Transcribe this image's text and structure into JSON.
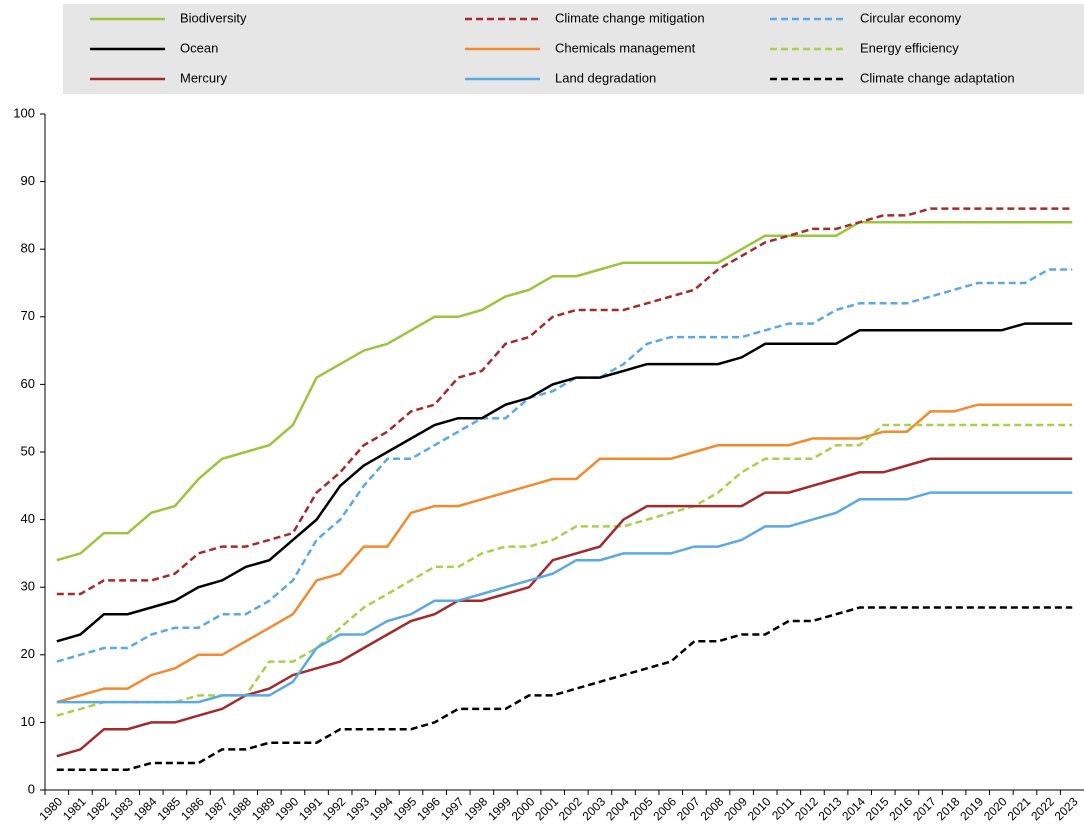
{
  "chart_data": {
    "type": "line",
    "categories": [
      "1980",
      "1981",
      "1982",
      "1983",
      "1984",
      "1985",
      "1986",
      "1987",
      "1988",
      "1989",
      "1990",
      "1991",
      "1992",
      "1993",
      "1994",
      "1995",
      "1996",
      "1997",
      "1998",
      "1999",
      "2000",
      "2001",
      "2002",
      "2003",
      "2004",
      "2005",
      "2006",
      "2007",
      "2008",
      "2009",
      "2010",
      "2011",
      "2012",
      "2013",
      "2014",
      "2015",
      "2016",
      "2017",
      "2018",
      "2019",
      "2020",
      "2021",
      "2022",
      "2023"
    ],
    "ylim": [
      0,
      100
    ],
    "yticks": [
      0,
      10,
      20,
      30,
      40,
      50,
      60,
      70,
      80,
      90,
      100
    ],
    "grid": false,
    "series": [
      {
        "name": "Biodiversity",
        "color": "#9bc53d",
        "dash": false,
        "values": [
          34,
          35,
          38,
          38,
          41,
          42,
          46,
          49,
          50,
          51,
          54,
          61,
          63,
          65,
          66,
          68,
          70,
          70,
          71,
          73,
          74,
          76,
          76,
          77,
          78,
          78,
          78,
          78,
          78,
          80,
          82,
          82,
          82,
          82,
          84,
          84,
          84,
          84,
          84,
          84,
          84,
          84,
          84,
          84
        ]
      },
      {
        "name": "Climate change mitigation",
        "color": "#a52a2a",
        "dash": true,
        "values": [
          29,
          29,
          31,
          31,
          31,
          32,
          35,
          36,
          36,
          37,
          38,
          44,
          47,
          51,
          53,
          56,
          57,
          61,
          62,
          66,
          67,
          70,
          71,
          71,
          71,
          72,
          73,
          74,
          77,
          79,
          81,
          82,
          83,
          83,
          84,
          85,
          85,
          86,
          86,
          86,
          86,
          86,
          86,
          86
        ]
      },
      {
        "name": "Circular economy",
        "color": "#5aa9e6",
        "dash": true,
        "values": [
          19,
          20,
          21,
          21,
          23,
          24,
          24,
          26,
          26,
          28,
          31,
          37,
          40,
          45,
          49,
          49,
          51,
          53,
          55,
          55,
          58,
          59,
          61,
          61,
          63,
          66,
          67,
          67,
          67,
          67,
          68,
          69,
          69,
          71,
          72,
          72,
          72,
          73,
          74,
          75,
          75,
          75,
          77,
          77
        ]
      },
      {
        "name": "Ocean",
        "color": "#000000",
        "dash": false,
        "values": [
          22,
          23,
          26,
          26,
          27,
          28,
          30,
          31,
          33,
          34,
          37,
          40,
          45,
          48,
          50,
          52,
          54,
          55,
          55,
          57,
          58,
          60,
          61,
          61,
          62,
          63,
          63,
          63,
          63,
          64,
          66,
          66,
          66,
          66,
          68,
          68,
          68,
          68,
          68,
          68,
          68,
          69,
          69,
          69
        ]
      },
      {
        "name": "Chemicals management",
        "color": "#f28a2e",
        "dash": false,
        "values": [
          13,
          14,
          15,
          15,
          17,
          18,
          20,
          20,
          22,
          24,
          26,
          31,
          32,
          36,
          36,
          41,
          42,
          42,
          43,
          44,
          45,
          46,
          46,
          49,
          49,
          49,
          49,
          50,
          51,
          51,
          51,
          51,
          52,
          52,
          52,
          53,
          53,
          56,
          56,
          57,
          57,
          57,
          57,
          57
        ]
      },
      {
        "name": "Energy efficiency",
        "color": "#a8d04a",
        "dash": true,
        "values": [
          11,
          12,
          13,
          13,
          13,
          13,
          14,
          14,
          14,
          19,
          19,
          21,
          24,
          27,
          29,
          31,
          33,
          33,
          35,
          36,
          36,
          37,
          39,
          39,
          39,
          40,
          41,
          42,
          44,
          47,
          49,
          49,
          49,
          51,
          51,
          54,
          54,
          54,
          54,
          54,
          54,
          54,
          54,
          54
        ]
      },
      {
        "name": "Mercury",
        "color": "#a32a2a",
        "dash": false,
        "values": [
          5,
          6,
          9,
          9,
          10,
          10,
          11,
          12,
          14,
          15,
          17,
          18,
          19,
          21,
          23,
          25,
          26,
          28,
          28,
          29,
          30,
          34,
          35,
          36,
          40,
          42,
          42,
          42,
          42,
          42,
          44,
          44,
          45,
          46,
          47,
          47,
          48,
          49,
          49,
          49,
          49,
          49,
          49,
          49
        ]
      },
      {
        "name": "Land degradation",
        "color": "#5aaae0",
        "dash": false,
        "values": [
          13,
          13,
          13,
          13,
          13,
          13,
          13,
          14,
          14,
          14,
          16,
          21,
          23,
          23,
          25,
          26,
          28,
          28,
          29,
          30,
          31,
          32,
          34,
          34,
          35,
          35,
          35,
          36,
          36,
          37,
          39,
          39,
          40,
          41,
          43,
          43,
          43,
          44,
          44,
          44,
          44,
          44,
          44,
          44
        ]
      },
      {
        "name": "Climate change adaptation",
        "color": "#000000",
        "dash": true,
        "values": [
          3,
          3,
          3,
          3,
          4,
          4,
          4,
          6,
          6,
          7,
          7,
          7,
          9,
          9,
          9,
          9,
          10,
          12,
          12,
          12,
          14,
          14,
          15,
          16,
          17,
          18,
          19,
          22,
          22,
          23,
          23,
          25,
          25,
          26,
          27,
          27,
          27,
          27,
          27,
          27,
          27,
          27,
          27,
          27
        ]
      }
    ]
  }
}
